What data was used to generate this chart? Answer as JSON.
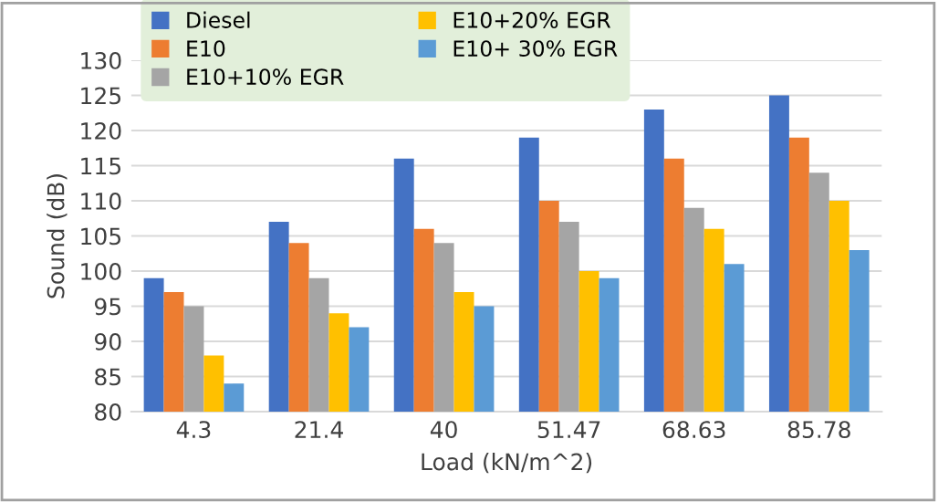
{
  "chart_data": {
    "type": "bar",
    "xlabel": "Load (kN/m^2)",
    "ylabel": "Sound (dB)",
    "categories": [
      "4.3",
      "21.4",
      "40",
      "51.47",
      "68.63",
      "85.78"
    ],
    "series": [
      {
        "name": "Diesel",
        "color": "#4472c4",
        "values": [
          99,
          107,
          116,
          119,
          123,
          125
        ]
      },
      {
        "name": "E10",
        "color": "#ed7d31",
        "values": [
          97,
          104,
          106,
          110,
          116,
          119
        ]
      },
      {
        "name": "E10+10% EGR",
        "color": "#a5a5a5",
        "values": [
          95,
          99,
          104,
          107,
          109,
          114
        ]
      },
      {
        "name": "E10+20% EGR",
        "color": "#ffc000",
        "values": [
          88,
          94,
          97,
          100,
          106,
          110
        ]
      },
      {
        "name": "E10+ 30% EGR",
        "color": "#5b9bd5",
        "values": [
          84,
          92,
          95,
          99,
          101,
          103
        ]
      }
    ],
    "ylim": [
      80,
      130
    ],
    "yticks": [
      80,
      85,
      90,
      95,
      100,
      105,
      110,
      115,
      120,
      125,
      130
    ],
    "grid": "y",
    "legend": "top left"
  }
}
